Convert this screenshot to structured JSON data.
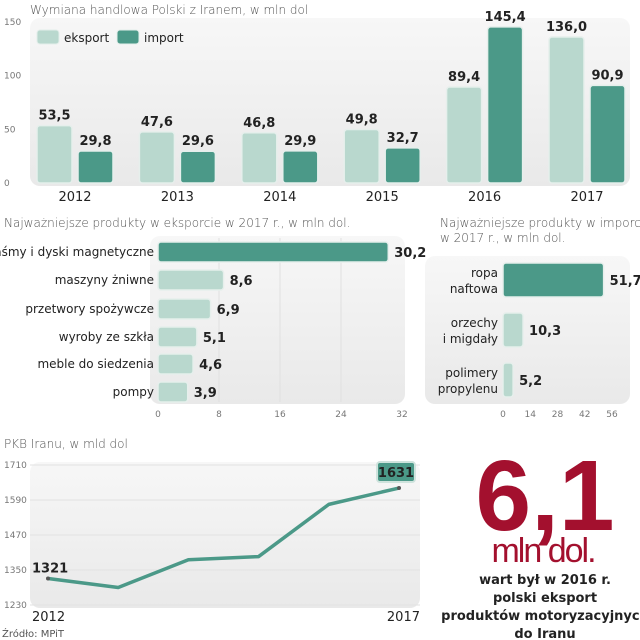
{
  "colors": {
    "export": "#b9d8ce",
    "import": "#4b9988",
    "panel": "#efefef",
    "accent": "#a3102e",
    "line": "#4b9988"
  },
  "chart_data": [
    {
      "type": "bar",
      "title": "Wymiana handlowa Polski z Iranem, w mln dol",
      "categories": [
        "2012",
        "2013",
        "2014",
        "2015",
        "2016",
        "2017"
      ],
      "series": [
        {
          "name": "eksport",
          "values": [
            53.5,
            47.6,
            46.8,
            49.8,
            89.4,
            136.0
          ],
          "labels": [
            "53,5",
            "47,6",
            "46,8",
            "49,8",
            "89,4",
            "136,0"
          ]
        },
        {
          "name": "import",
          "values": [
            29.8,
            29.6,
            29.9,
            32.7,
            145.4,
            90.9
          ],
          "labels": [
            "29,8",
            "29,6",
            "29,9",
            "32,7",
            "145,4",
            "90,9"
          ]
        }
      ],
      "yticks": [
        "0",
        "50",
        "100",
        "150"
      ],
      "ylim": [
        0,
        150
      ],
      "legend": "top-left"
    },
    {
      "type": "bar",
      "orientation": "horizontal",
      "title": "Najważniejsze produkty w eksporcie w 2017 r., w mln dol.",
      "categories": [
        "taśmy i dyski magnetyczne",
        "maszyny żniwne",
        "przetwory spożywcze",
        "wyroby ze szkła",
        "meble do siedzenia",
        "pompy"
      ],
      "values": [
        30.2,
        8.6,
        6.9,
        5.1,
        4.6,
        3.9
      ],
      "labels": [
        "30,2",
        "8,6",
        "6,9",
        "5,1",
        "4,6",
        "3,9"
      ],
      "xticks": [
        "0",
        "8",
        "16",
        "24",
        "32"
      ],
      "xlim": [
        0,
        32
      ]
    },
    {
      "type": "bar",
      "orientation": "horizontal",
      "title": [
        "Najważniejsze produkty w imporcie",
        "w 2017 r., w mln dol."
      ],
      "categories": [
        [
          "ropa",
          "naftowa"
        ],
        [
          "orzechy",
          "i migdały"
        ],
        [
          "polimery",
          "propylenu"
        ]
      ],
      "values": [
        51.7,
        10.3,
        5.2
      ],
      "labels": [
        "51,7",
        "10,3",
        "5,2"
      ],
      "xticks": [
        "0",
        "14",
        "28",
        "42",
        "56"
      ],
      "xlim": [
        0,
        56
      ]
    },
    {
      "type": "line",
      "title": "PKB Iranu, w mld dol",
      "x": [
        2012,
        2013,
        2014,
        2015,
        2016,
        2017
      ],
      "values": [
        1321,
        1290,
        1385,
        1396,
        1575,
        1631
      ],
      "xticks": [
        "2012",
        "2017"
      ],
      "yticks": [
        "1230",
        "1350",
        "1470",
        "1590",
        "1710"
      ],
      "ylim": [
        1230,
        1710
      ],
      "labels": {
        "first": "1321",
        "last": "1631"
      }
    }
  ],
  "callout": {
    "value": "6,1",
    "unit": "mln dol.",
    "lines": [
      "wart był w 2016 r.",
      "polski eksport",
      "produktów motoryzacyjnych",
      "do Iranu"
    ]
  },
  "source": "Źródło: MPiT"
}
